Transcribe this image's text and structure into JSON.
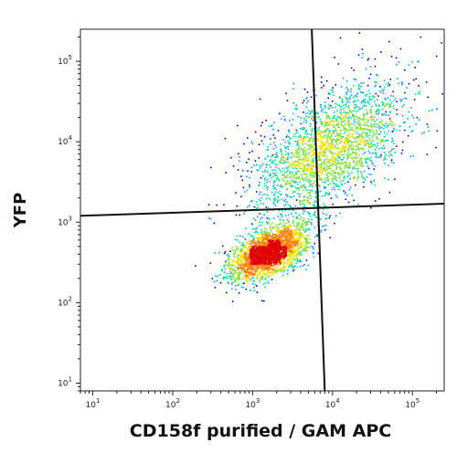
{
  "chart_data": {
    "type": "scatter",
    "subtype": "flow-cytometry-density-dot-plot",
    "xlabel": "CD158f purified / GAM APC",
    "ylabel": "YFP",
    "x_scale": "log",
    "y_scale": "log",
    "xlim": [
      7,
      250000
    ],
    "ylim": [
      8,
      250000
    ],
    "x_ticks": [
      {
        "base": "10",
        "exp": "1",
        "value": 10
      },
      {
        "base": "10",
        "exp": "2",
        "value": 100
      },
      {
        "base": "10",
        "exp": "3",
        "value": 1000
      },
      {
        "base": "10",
        "exp": "4",
        "value": 10000
      },
      {
        "base": "10",
        "exp": "5",
        "value": 100000
      }
    ],
    "y_ticks": [
      {
        "base": "10",
        "exp": "1",
        "value": 10
      },
      {
        "base": "10",
        "exp": "2",
        "value": 100
      },
      {
        "base": "10",
        "exp": "3",
        "value": 1000
      },
      {
        "base": "10",
        "exp": "4",
        "value": 10000
      },
      {
        "base": "10",
        "exp": "5",
        "value": 100000
      }
    ],
    "grid": false,
    "legend": "none",
    "populations": [
      {
        "center_x": 1600,
        "center_y": 420,
        "spread_log_x": 0.23,
        "spread_log_y": 0.17,
        "events": 2600,
        "description": "dense cluster"
      },
      {
        "center_x": 9000,
        "center_y": 8000,
        "spread_log_x": 0.48,
        "spread_log_y": 0.42,
        "events": 2300,
        "description": "diffuse upper cluster"
      }
    ],
    "quadrant_gates": {
      "horizontal_line": [
        [
          7,
          1200
        ],
        [
          250000,
          1700
        ]
      ],
      "vertical_line": [
        [
          5500,
          250000
        ],
        [
          8000,
          8
        ]
      ]
    },
    "density_colors": [
      "#0000cc",
      "#00a0ff",
      "#00d9a0",
      "#80e030",
      "#f0e000",
      "#ff8000",
      "#e00000"
    ]
  }
}
